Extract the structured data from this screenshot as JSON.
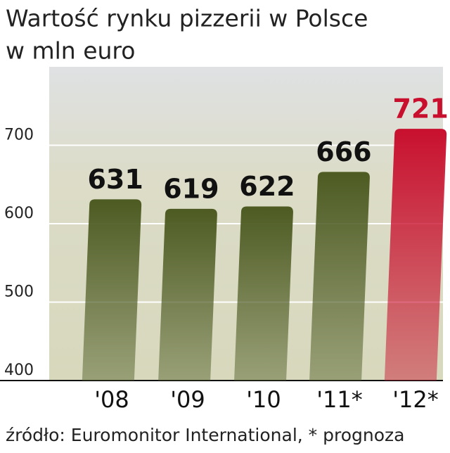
{
  "chart_data": {
    "type": "bar",
    "title": "Wartość rynku pizzerii w Polsce",
    "subtitle": "w mln euro",
    "categories": [
      "'08",
      "'09",
      "'10",
      "'11*",
      "'12*"
    ],
    "values": [
      631,
      619,
      622,
      666,
      721
    ],
    "colors": [
      "#4d5b22",
      "#4d5b22",
      "#4d5b22",
      "#4d5b22",
      "#c8102e"
    ],
    "ylim": [
      400,
      800
    ],
    "yticks": [
      400,
      500,
      600,
      700
    ],
    "grid": true,
    "source": "źródło: Euromonitor International, * prognoza"
  }
}
